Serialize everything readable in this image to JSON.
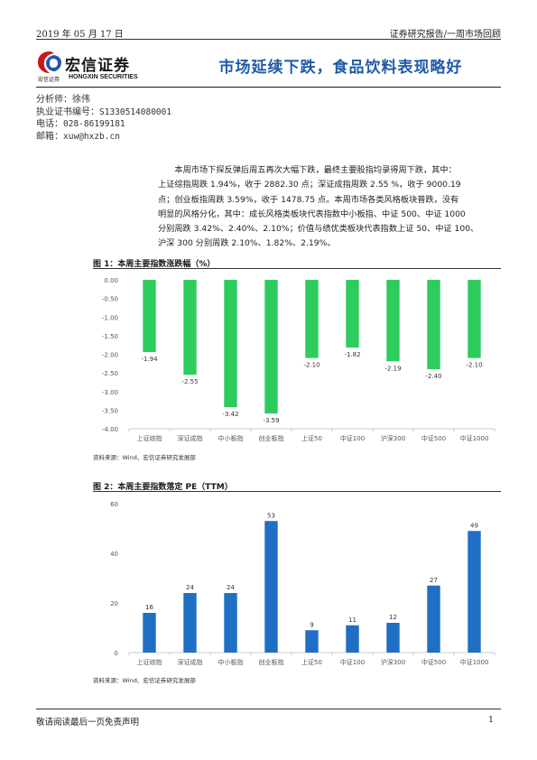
{
  "header": {
    "date": "2019 年 05 月 17 日",
    "category": "证券研究报告/一周市场回顾"
  },
  "logo": {
    "name_cn": "宏信证券",
    "sub_cn": "宏信证券",
    "name_en": "HONGXIN SECURITIES",
    "colors": {
      "red": "#c8161d",
      "blue": "#1f5aa8"
    }
  },
  "title": "市场延续下跌，食品饮料表现略好",
  "analyst": {
    "name_label": "分析师：",
    "name": "徐伟",
    "cert_label": "执业证书编号：",
    "cert": "S1330514080001",
    "phone_label": "电话：",
    "phone": "028-86199181",
    "email_label": "邮箱：",
    "email": "xuw@hxzb.cn"
  },
  "body": {
    "lines": [
      "本周市场下探反弹后周五再次大幅下跌，最终主要股指均录得周下跌，其中：",
      "上证综指周跌 1.94%，收于 2882.30 点；深证成指周跌 2.55 %，收于 9000.19",
      "点；创业板指周跌 3.59%，收于 1478.75 点。本周市场各类风格板块普跌，没有",
      "明显的风格分化，其中：成长风格类板块代表指数中小板指、中证 500、中证 1000",
      "分别周跌 3.42%、2.40%、2.10%；价值与绩优类板块代表指数上证 50、中证 100、",
      "沪深 300 分别周跌 2.10%、1.82%、2.19%。"
    ]
  },
  "figure1": {
    "title": "图 1：本周主要指数涨跌幅（%）",
    "source": "资料来源：Wind、宏信证券研究发展部"
  },
  "figure2": {
    "title": "图 2：本周主要指数落定 PE（TTM）",
    "source": "资料来源：Wind、宏信证券研究发展部"
  },
  "chart_data": [
    {
      "type": "bar",
      "title": "本周主要指数涨跌幅（%）",
      "categories": [
        "上证综指",
        "深证成指",
        "中小板指",
        "创业板指",
        "上证50",
        "中证100",
        "沪深300",
        "中证500",
        "中证1000"
      ],
      "values": [
        -1.94,
        -2.55,
        -3.42,
        -3.59,
        -2.1,
        -1.82,
        -2.19,
        -2.4,
        -2.1
      ],
      "value_labels": [
        "-1.94",
        "-2.55",
        "-3.42",
        "-3.59",
        "-2.10",
        "-1.82",
        "-2.19",
        "-2.40",
        "-2.10"
      ],
      "ylim": [
        -4.0,
        0.0
      ],
      "yticks": [
        "0.00",
        "-0.50",
        "-1.00",
        "-1.50",
        "-2.00",
        "-2.50",
        "-3.00",
        "-3.50",
        "-4.00"
      ],
      "ytick_values": [
        0,
        -0.5,
        -1,
        -1.5,
        -2,
        -2.5,
        -3,
        -3.5,
        -4
      ],
      "color": "#2ecc5e",
      "grid": false
    },
    {
      "type": "bar",
      "title": "本周主要指数落定 PE（TTM）",
      "categories": [
        "上证综指",
        "深证成指",
        "中小板指",
        "创业板指",
        "上证50",
        "中证100",
        "沪深300",
        "中证500",
        "中证1000"
      ],
      "values": [
        16,
        24,
        24,
        53,
        9,
        11,
        12,
        27,
        49
      ],
      "value_labels": [
        "16",
        "24",
        "24",
        "53",
        "9",
        "11",
        "12",
        "27",
        "49"
      ],
      "ylim": [
        0,
        60
      ],
      "yticks": [
        "0",
        "20",
        "40",
        "60"
      ],
      "ytick_values": [
        0,
        20,
        40,
        60
      ],
      "color": "#1f6fc4",
      "grid": false
    }
  ],
  "footer": {
    "disclaimer": "敬请阅读最后一页免责声明",
    "page": "1"
  }
}
